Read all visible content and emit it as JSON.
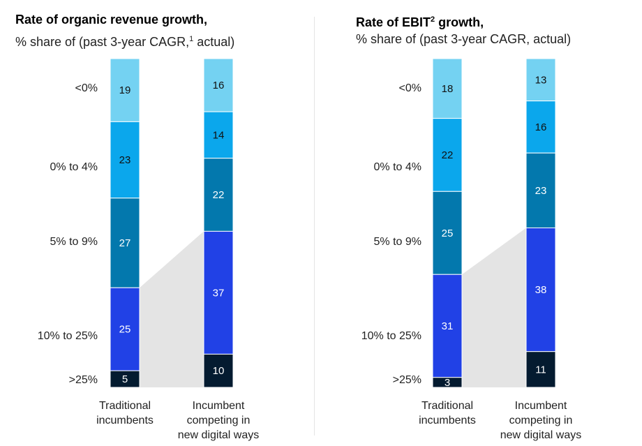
{
  "colors": {
    "lt0": "#74d2f2",
    "g0to4": "#0ba7ec",
    "g5to9": "#0378ad",
    "g10to25": "#2141e6",
    "gt25": "#041b30",
    "connector": "#e4e4e4"
  },
  "chart_data": [
    {
      "type": "bar",
      "stacked": true,
      "title": "Rate of organic revenue growth,",
      "subtitle_prefix": "% share of (past 3-year CAGR,",
      "subtitle_sup": "1",
      "subtitle_suffix": " actual)",
      "categories": [
        "<0%",
        "0% to 4%",
        "5% to 9%",
        "10% to 25%",
        ">25%"
      ],
      "x_labels": [
        [
          "Traditional",
          "incumbents"
        ],
        [
          "Incumbent",
          "competing in",
          "new digital ways"
        ]
      ],
      "series": [
        {
          "name": "Traditional incumbents",
          "values": [
            19,
            23,
            27,
            25,
            5
          ]
        },
        {
          "name": "Incumbent competing in new digital ways",
          "values": [
            16,
            14,
            22,
            37,
            10
          ]
        }
      ]
    },
    {
      "type": "bar",
      "stacked": true,
      "title_prefix": "Rate of EBIT",
      "title_sup": "2",
      "title_suffix": " growth,",
      "subtitle": "% share of (past 3-year CAGR, actual)",
      "categories": [
        "<0%",
        "0% to 4%",
        "5% to 9%",
        "10% to 25%",
        ">25%"
      ],
      "x_labels": [
        [
          "Traditional",
          "incumbents"
        ],
        [
          "Incumbent",
          "competing in",
          "new digital ways"
        ]
      ],
      "series": [
        {
          "name": "Traditional incumbents",
          "values": [
            18,
            22,
            25,
            31,
            3
          ]
        },
        {
          "name": "Incumbent competing in new digital ways",
          "values": [
            13,
            16,
            23,
            38,
            11
          ]
        }
      ]
    }
  ]
}
